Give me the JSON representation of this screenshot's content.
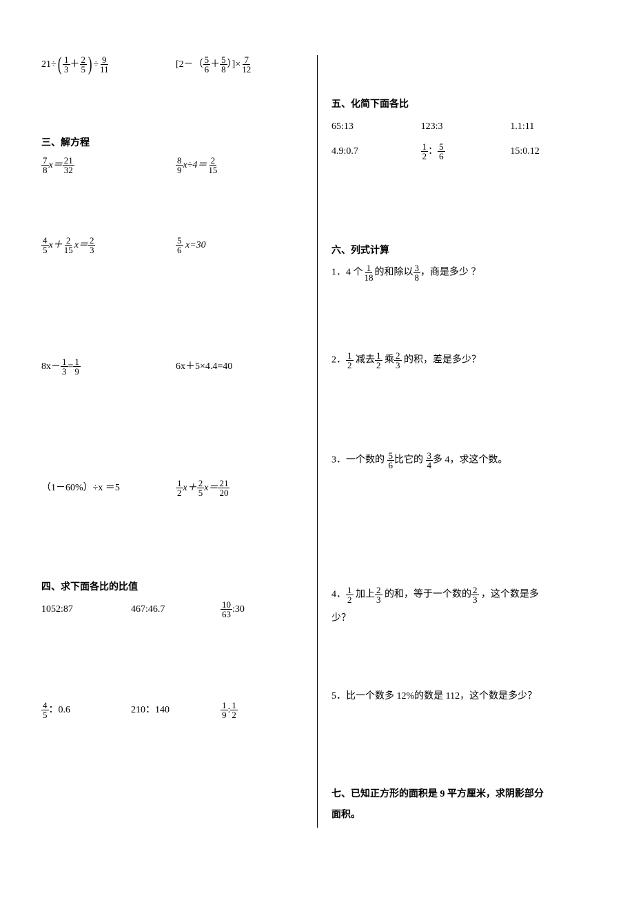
{
  "page": {
    "background_color": "#ffffff",
    "text_color": "#000000",
    "font_family": "SimSun",
    "font_size_body": 14,
    "font_size_title": 14,
    "divider_color": "#000000",
    "divider_width": 1.5
  },
  "left": {
    "top_exprs": {
      "e1": {
        "prefix": "21÷",
        "f1_num": "1",
        "f1_den": "3",
        "op": "＋",
        "f2_num": "2",
        "f2_den": "5",
        "mid": "÷",
        "f3_num": "9",
        "f3_den": "11"
      },
      "e2": {
        "prefix": "[2－（",
        "f1_num": "5",
        "f1_den": "6",
        "op": "＋",
        "f2_num": "5",
        "f2_den": "8",
        "mid": "）]×",
        "f3_num": "7",
        "f3_den": "12"
      }
    },
    "section3_title": "三、解方程",
    "s3": {
      "r1a": {
        "f1_num": "7",
        "f1_den": "8",
        "mid": "x＝",
        "f2_num": "21",
        "f2_den": "32"
      },
      "r1b": {
        "f1_num": "8",
        "f1_den": "9",
        "mid": "x÷4＝",
        "f2_num": "2",
        "f2_den": "15"
      },
      "r2a": {
        "f1_num": "4",
        "f1_den": "5",
        "mid1": "x＋",
        "f2_num": "2",
        "f2_den": "15",
        "mid2": "x＝",
        "f3_num": "2",
        "f3_den": "3"
      },
      "r2b": {
        "f1_num": "5",
        "f1_den": "6",
        "suffix": " x=30"
      },
      "r3a": {
        "prefix": "8x－",
        "f1_num": "1",
        "f1_den": "3",
        "mid": "=",
        "f2_num": "1",
        "f2_den": "9"
      },
      "r3b": "6x＋5×4.4=40",
      "r4a": "（1－60%）÷x  ＝5",
      "r4b": {
        "f1_num": "1",
        "f1_den": "2",
        "mid1": "x＋",
        "f2_num": "2",
        "f2_den": "5",
        "mid2": "x＝",
        "f3_num": "21",
        "f3_den": "20"
      }
    },
    "section4_title": "四、求下面各比的比值",
    "s4": {
      "r1a": "1052:87",
      "r1b": "467:46.7",
      "r1c": {
        "f_num": "10",
        "f_den": "63",
        "suffix": ":30"
      },
      "r2a": {
        "f_num": "4",
        "f_den": "5",
        "suffix": "：0.6"
      },
      "r2b": "210：140",
      "r2c": {
        "f1_num": "1",
        "f1_den": "9",
        "mid": ":",
        "f2_num": "1",
        "f2_den": "2"
      }
    }
  },
  "right": {
    "section5_title": "五、化简下面各比",
    "s5": {
      "r1a": "65:13",
      "r1b": "123:3",
      "r1c": "1.1:11",
      "r2a": "4.9:0.7",
      "r2b": {
        "f1_num": "1",
        "f1_den": "2",
        "mid": "：",
        "f2_num": "5",
        "f2_den": "6"
      },
      "r2c": "15:0.12"
    },
    "section6_title": "六、列式计算",
    "s6": {
      "q1": {
        "prefix": "1．4 个",
        "f1_num": "1",
        "f1_den": "18",
        "mid": "的和除以",
        "f2_num": "3",
        "f2_den": "8",
        "suffix": "，商是多少 ？"
      },
      "q2": {
        "prefix": "2．",
        "f1_num": "1",
        "f1_den": "2",
        "mid1": " 减去",
        "f2_num": "1",
        "f2_den": "2",
        "mid2": " 乘",
        "f3_num": "2",
        "f3_den": "3",
        "suffix": " 的积，差是多少？"
      },
      "q3": {
        "prefix": "3．一个数的 ",
        "f1_num": "5",
        "f1_den": "6",
        "mid": "比它的 ",
        "f2_num": "3",
        "f2_den": "4",
        "suffix": "多 4，求这个数。"
      },
      "q4": {
        "prefix": "4．",
        "f1_num": "1",
        "f1_den": "2",
        "mid1": " 加上",
        "f2_num": "2",
        "f2_den": "3",
        "mid2": " 的和，等于一个数的",
        "f3_num": "2",
        "f3_den": "3",
        "suffix": " ，这个数是多"
      },
      "q4_line2": "少？",
      "q5": "5．比一个数多 12%的数是 112，这个数是多少？"
    },
    "section7_title": "七、已知正方形的面积是 9 平方厘米，求阴影部分",
    "section7_title2": "面积。"
  }
}
